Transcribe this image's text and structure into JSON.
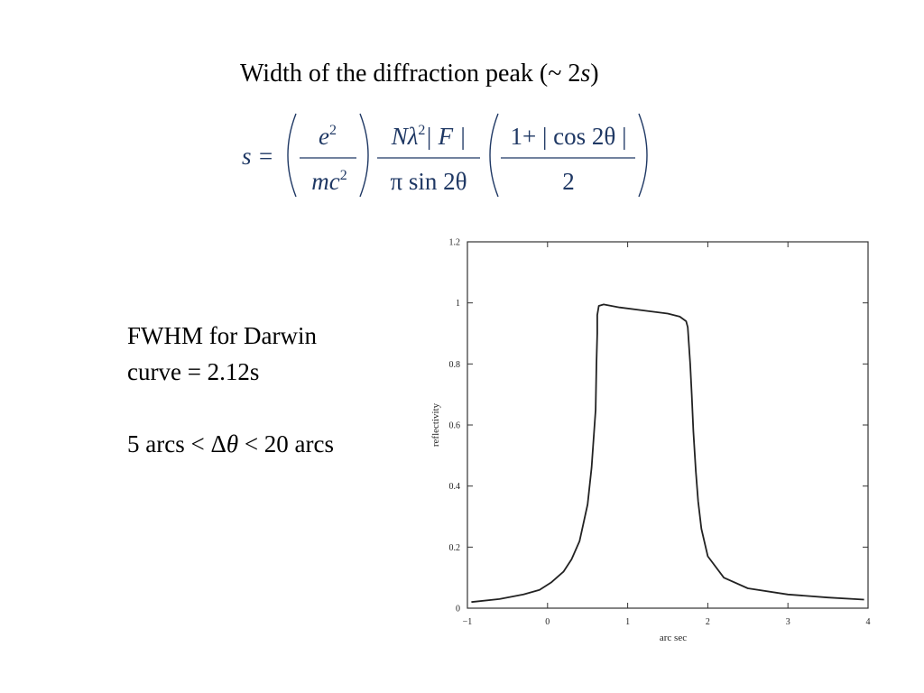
{
  "slide": {
    "title_prefix": "Width of the diffraction peak (~ 2",
    "title_var": "s",
    "title_suffix": ")"
  },
  "formula": {
    "lhs": "s =",
    "frac1_num": "e",
    "frac1_num_sup": "2",
    "frac1_den": "mc",
    "frac1_den_sup": "2",
    "frac2_num_a": "Nλ",
    "frac2_num_sup": "2",
    "frac2_num_b": "| F |",
    "frac2_den": "π sin 2θ",
    "frac3_num": "1+ | cos 2θ |",
    "frac3_den": "2"
  },
  "notes": {
    "line1": "FWHM for Darwin",
    "line2": "curve = 2.12s",
    "ineq_left": "5 arcs < Δ",
    "ineq_var": "θ",
    "ineq_right": "< 20 arcs"
  },
  "chart_data": {
    "type": "line",
    "xlabel": "arc sec",
    "ylabel": "reflectivity",
    "xlim": [
      -1,
      4
    ],
    "ylim": [
      0,
      1.2
    ],
    "xticks": [
      -1,
      0,
      1,
      2,
      3,
      4
    ],
    "xtick_labels": [
      "−1",
      "0",
      "1",
      "2",
      "3",
      "4"
    ],
    "yticks": [
      0,
      0.2,
      0.4,
      0.6,
      0.8,
      1,
      1.2
    ],
    "ytick_labels": [
      "0",
      "0.2",
      "0.4",
      "0.6",
      "0.8",
      "1",
      "1.2"
    ],
    "grid": false,
    "series": [
      {
        "color": "#222222",
        "x": [
          -0.95,
          -0.6,
          -0.3,
          -0.1,
          0.05,
          0.2,
          0.3,
          0.4,
          0.5,
          0.55,
          0.6,
          0.61,
          0.62,
          0.62,
          0.64,
          0.7,
          0.9,
          1.2,
          1.5,
          1.65,
          1.73,
          1.75,
          1.76,
          1.78,
          1.8,
          1.82,
          1.85,
          1.88,
          1.92,
          2.0,
          2.2,
          2.5,
          3.0,
          3.5,
          3.95
        ],
        "y": [
          0.02,
          0.03,
          0.045,
          0.06,
          0.085,
          0.12,
          0.16,
          0.22,
          0.34,
          0.46,
          0.65,
          0.8,
          0.9,
          0.96,
          0.99,
          0.995,
          0.985,
          0.975,
          0.965,
          0.955,
          0.94,
          0.92,
          0.88,
          0.8,
          0.7,
          0.58,
          0.45,
          0.35,
          0.26,
          0.17,
          0.1,
          0.065,
          0.045,
          0.035,
          0.028
        ]
      }
    ]
  }
}
